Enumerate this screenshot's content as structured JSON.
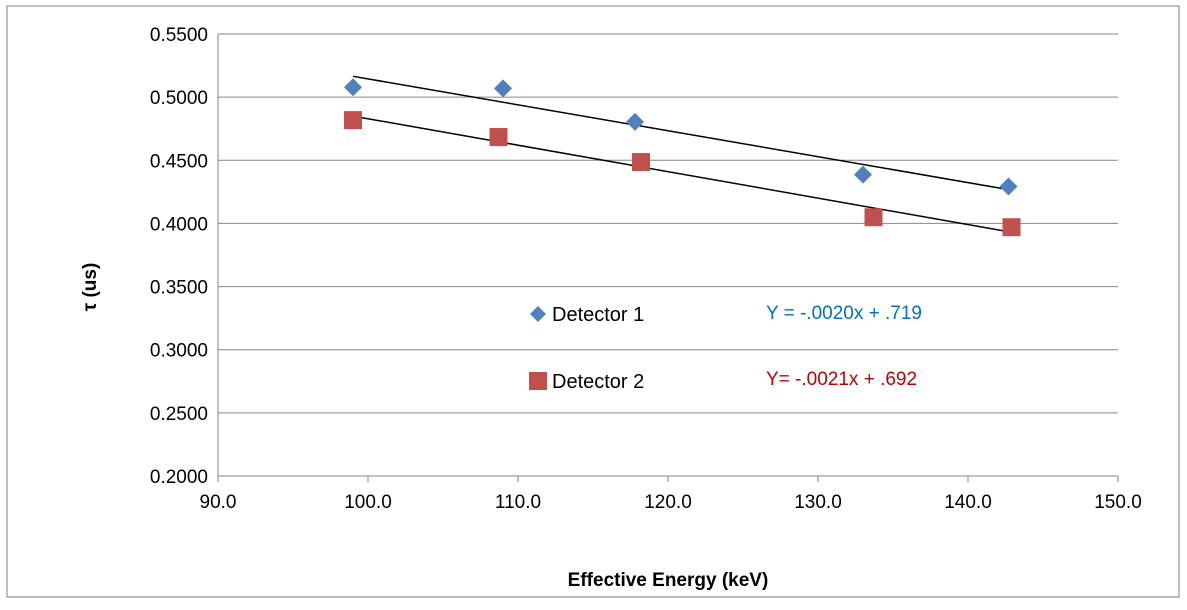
{
  "chart_data": {
    "type": "scatter",
    "title": "",
    "xlabel": "Effective Energy (keV)",
    "ylabel": "τ (us)",
    "xlim": [
      90,
      150
    ],
    "ylim": [
      0.2,
      0.55
    ],
    "x_ticks": [
      "90.0",
      "100.0",
      "110.0",
      "120.0",
      "130.0",
      "140.0",
      "150.0"
    ],
    "y_ticks": [
      "0.2000",
      "0.2500",
      "0.3000",
      "0.3500",
      "0.4000",
      "0.4500",
      "0.5000",
      "0.5500"
    ],
    "grid": "horizontal",
    "legend_position": "center",
    "series": [
      {
        "name": "Detector 1",
        "marker": "diamond",
        "color": "#4F81BD",
        "points": [
          {
            "x": 99.0,
            "y": 0.5078
          },
          {
            "x": 109.0,
            "y": 0.5069
          },
          {
            "x": 117.8,
            "y": 0.4804
          },
          {
            "x": 133.0,
            "y": 0.4386
          },
          {
            "x": 142.7,
            "y": 0.4292
          }
        ],
        "trendline": {
          "x": [
            99.0,
            142.7
          ],
          "y": [
            0.5165,
            0.4268
          ]
        },
        "equation": "Y = -.0020x + .719",
        "equation_color": "#0070C0"
      },
      {
        "name": "Detector 2",
        "marker": "square",
        "color": "#C0504D",
        "points": [
          {
            "x": 99.0,
            "y": 0.4818
          },
          {
            "x": 108.7,
            "y": 0.4684
          },
          {
            "x": 118.2,
            "y": 0.4486
          },
          {
            "x": 133.7,
            "y": 0.4049
          },
          {
            "x": 142.9,
            "y": 0.397
          }
        ],
        "trendline": {
          "x": [
            99.0,
            142.9
          ],
          "y": [
            0.485,
            0.393
          ]
        },
        "equation": "Y= -.0021x + .692",
        "equation_color": "#C00000"
      }
    ]
  }
}
